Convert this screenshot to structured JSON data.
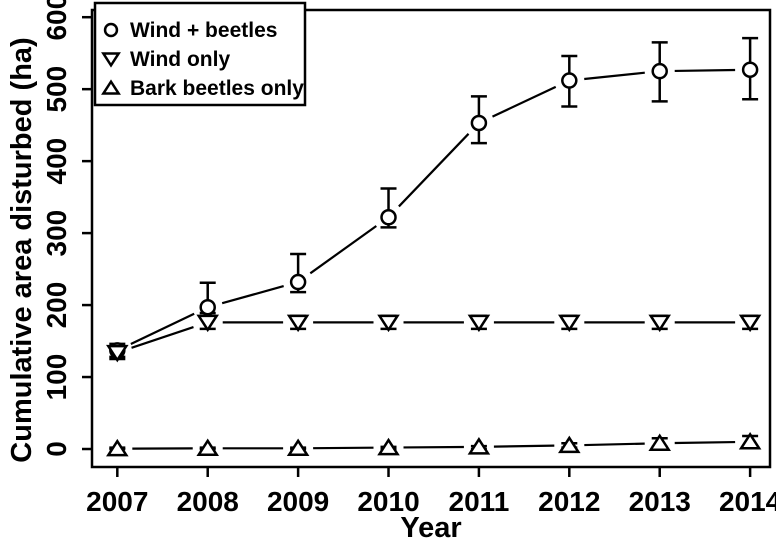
{
  "figure": {
    "background_color": "#ffffff",
    "foreground_color": "#000000"
  },
  "chart_data": {
    "type": "line",
    "title": "",
    "xlabel": "Year",
    "ylabel": "Cumulative area disturbed (ha)",
    "grid": false,
    "legend_position": "top-left",
    "xlim": [
      2006.72,
      2014.22
    ],
    "ylim": [
      -25,
      610
    ],
    "x_ticks": [
      "2007",
      "2008",
      "2009",
      "2010",
      "2011",
      "2012",
      "2013",
      "2014"
    ],
    "y_ticks": [
      "0",
      "100",
      "200",
      "300",
      "400",
      "500",
      "600"
    ],
    "x": [
      2007,
      2008,
      2009,
      2010,
      2011,
      2012,
      2013,
      2014
    ],
    "series": [
      {
        "name": "Wind + beetles",
        "marker": "circle",
        "values": [
          137,
          197,
          232,
          322,
          453,
          512,
          525,
          527
        ],
        "err_low": [
          128,
          189,
          218,
          308,
          425,
          476,
          483,
          486
        ],
        "err_high": [
          146,
          231,
          271,
          362,
          490,
          546,
          565,
          571
        ]
      },
      {
        "name": "Wind only",
        "marker": "triangle-down",
        "values": [
          134,
          176,
          176,
          176,
          176,
          176,
          176,
          176
        ],
        "err_low": [
          125,
          167,
          167,
          167,
          167,
          167,
          167,
          167
        ],
        "err_high": [
          143,
          185,
          185,
          185,
          185,
          185,
          185,
          185
        ]
      },
      {
        "name": "Bark beetles only",
        "marker": "triangle-up",
        "values": [
          0.5,
          1,
          1,
          2,
          3,
          5,
          8,
          10
        ],
        "err_low": [
          0,
          0,
          0,
          0,
          0,
          2,
          3,
          3
        ],
        "err_high": [
          2,
          2,
          2,
          3,
          4,
          8,
          15,
          18
        ]
      }
    ]
  }
}
